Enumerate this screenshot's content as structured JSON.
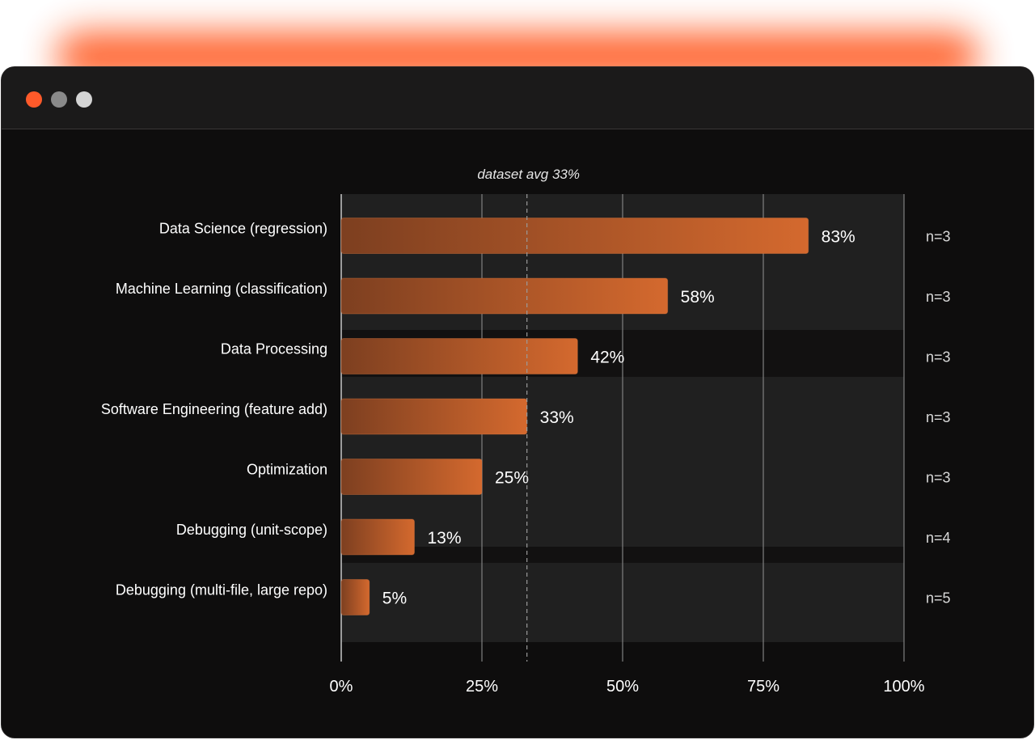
{
  "window": {
    "controls": [
      {
        "name": "close",
        "color": "#ff5a2a"
      },
      {
        "name": "minimize",
        "color": "#8a8a8a"
      },
      {
        "name": "maximize",
        "color": "#d4d4d4"
      }
    ]
  },
  "colors": {
    "bar_start": "#7d3f20",
    "bar_end": "#d4692e",
    "text": "#ffffff",
    "muted_text": "#d8d8d8"
  },
  "chart_data": {
    "type": "bar",
    "orientation": "horizontal",
    "categories": [
      "Data Science (regression)",
      "Machine Learning (classification)",
      "Data Processing",
      "Software Engineering (feature add)",
      "Optimization",
      "Debugging (unit-scope)",
      "Debugging (multi-file, large repo)"
    ],
    "values": [
      83,
      58,
      42,
      33,
      25,
      13,
      5
    ],
    "value_labels": [
      "83%",
      "58%",
      "42%",
      "33%",
      "25%",
      "13%",
      "5%"
    ],
    "counts": [
      "n=3",
      "n=3",
      "n=3",
      "n=3",
      "n=3",
      "n=4",
      "n=5"
    ],
    "xlim": [
      0,
      100
    ],
    "x_ticks": [
      0,
      25,
      50,
      75,
      100
    ],
    "x_tick_labels": [
      "0%",
      "25%",
      "50%",
      "75%",
      "100%"
    ],
    "reference_line": {
      "value": 33,
      "label": "dataset avg 33%"
    },
    "grid": true
  }
}
